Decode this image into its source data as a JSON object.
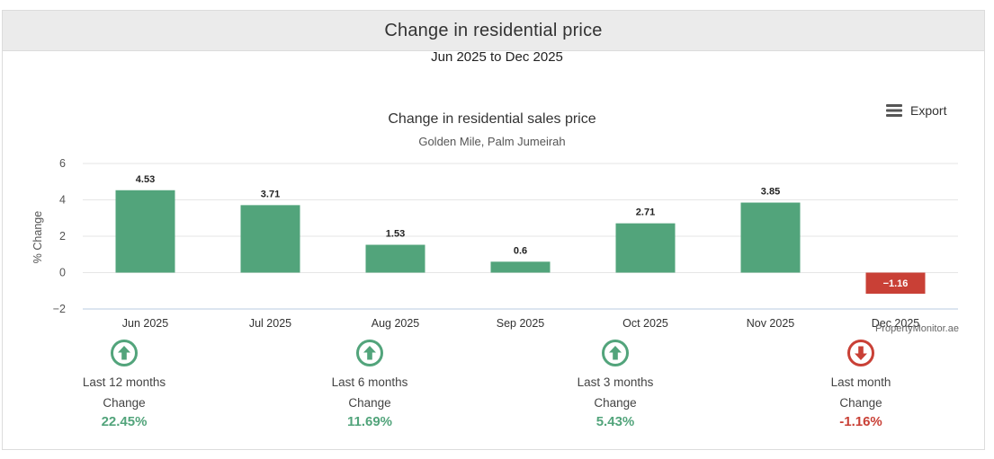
{
  "page": {
    "title": "Change in residential price",
    "date_range": "Jun 2025 to Dec 2025",
    "export_label": "Export",
    "credit": "PropertyMonitor.ae",
    "colors": {
      "positive": "#52a47b",
      "negative": "#c94036",
      "header_bg": "#ebebeb"
    }
  },
  "chart_data": {
    "type": "bar",
    "title": "Change in residential sales price",
    "subtitle": "Golden Mile, Palm Jumeirah",
    "ylabel": "% Change",
    "xlabel": "",
    "categories": [
      "Jun 2025",
      "Jul 2025",
      "Aug 2025",
      "Sep 2025",
      "Oct 2025",
      "Nov 2025",
      "Dec 2025"
    ],
    "values": [
      4.53,
      3.71,
      1.53,
      0.6,
      2.71,
      3.85,
      -1.16
    ],
    "value_labels": [
      "4.53",
      "3.71",
      "1.53",
      "0.6",
      "2.71",
      "3.85",
      "−1.16"
    ],
    "ylim": [
      -2,
      6
    ],
    "yticks": [
      6,
      4,
      2,
      0,
      -2
    ],
    "ytick_labels": [
      "6",
      "4",
      "2",
      "0",
      "−2"
    ],
    "grid": true,
    "legend": "none"
  },
  "stats": [
    {
      "period": "Last 12 months",
      "caption": "Change",
      "value": "22.45%",
      "direction": "up",
      "icon": "arrow-up-circle-icon"
    },
    {
      "period": "Last 6 months",
      "caption": "Change",
      "value": "11.69%",
      "direction": "up",
      "icon": "arrow-up-circle-icon"
    },
    {
      "period": "Last 3 months",
      "caption": "Change",
      "value": "5.43%",
      "direction": "up",
      "icon": "arrow-up-circle-icon"
    },
    {
      "period": "Last month",
      "caption": "Change",
      "value": "-1.16%",
      "direction": "down",
      "icon": "arrow-down-circle-icon"
    }
  ]
}
